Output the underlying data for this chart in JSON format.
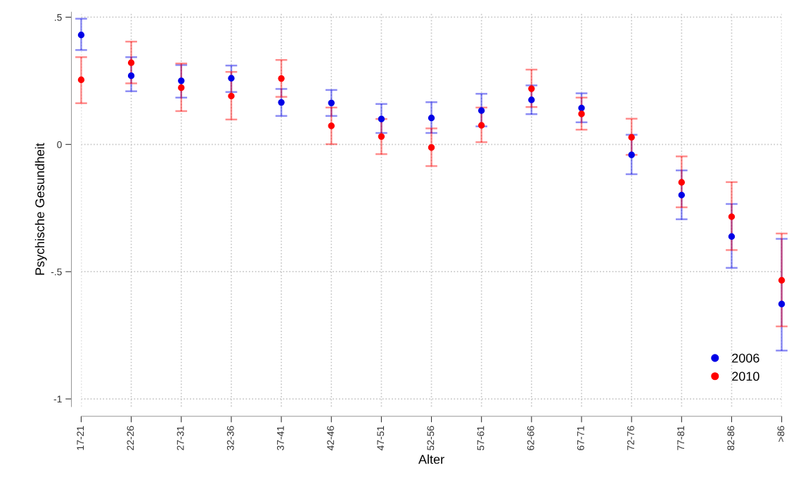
{
  "chart_data": {
    "type": "scatter",
    "xlabel": "Alter",
    "ylabel": "Psychische Gesundheit",
    "categories": [
      "17-21",
      "22-26",
      "27-31",
      "32-36",
      "37-41",
      "42-46",
      "47-51",
      "52-56",
      "57-61",
      "62-66",
      "67-71",
      "72-76",
      "77-81",
      "82-86",
      ">86"
    ],
    "series": [
      {
        "name": "2006",
        "color": "#0000e6",
        "values": [
          0.43,
          0.27,
          0.25,
          0.26,
          0.165,
          0.163,
          0.1,
          0.104,
          0.133,
          0.175,
          0.143,
          -0.041,
          -0.199,
          -0.362,
          -0.627
        ],
        "errors": [
          [
            0.371,
            0.494
          ],
          [
            0.209,
            0.343
          ],
          [
            0.184,
            0.312
          ],
          [
            0.206,
            0.31
          ],
          [
            0.112,
            0.218
          ],
          [
            0.112,
            0.214
          ],
          [
            0.045,
            0.159
          ],
          [
            0.045,
            0.166
          ],
          [
            0.071,
            0.199
          ],
          [
            0.119,
            0.232
          ],
          [
            0.087,
            0.201
          ],
          [
            -0.117,
            0.038
          ],
          [
            -0.294,
            -0.102
          ],
          [
            -0.485,
            -0.234
          ],
          [
            -0.81,
            -0.371
          ]
        ]
      },
      {
        "name": "2010",
        "color": "#ff0000",
        "values": [
          0.254,
          0.321,
          0.223,
          0.19,
          0.259,
          0.073,
          0.031,
          -0.012,
          0.075,
          0.219,
          0.12,
          0.028,
          -0.149,
          -0.284,
          -0.534
        ],
        "errors": [
          [
            0.162,
            0.343
          ],
          [
            0.24,
            0.404
          ],
          [
            0.131,
            0.318
          ],
          [
            0.098,
            0.285
          ],
          [
            0.187,
            0.332
          ],
          [
            0.001,
            0.145
          ],
          [
            -0.038,
            0.1
          ],
          [
            -0.085,
            0.063
          ],
          [
            0.009,
            0.145
          ],
          [
            0.147,
            0.294
          ],
          [
            0.058,
            0.184
          ],
          [
            -0.041,
            0.101
          ],
          [
            -0.247,
            -0.047
          ],
          [
            -0.415,
            -0.148
          ],
          [
            -0.715,
            -0.35
          ]
        ]
      }
    ],
    "ylim": [
      -1.03,
      0.52
    ],
    "yticks": [
      {
        "value": 0.5,
        "label": ".5"
      },
      0,
      {
        "value": -0.5,
        "label": "-.5"
      },
      -1
    ],
    "grid": true,
    "legend": "lower right",
    "marker": "circle"
  }
}
